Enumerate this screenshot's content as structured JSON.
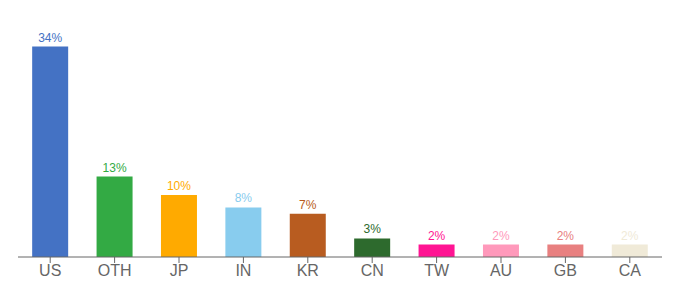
{
  "chart_data": {
    "type": "bar",
    "categories": [
      "US",
      "OTH",
      "JP",
      "IN",
      "KR",
      "CN",
      "TW",
      "AU",
      "GB",
      "CA"
    ],
    "values": [
      34,
      13,
      10,
      8,
      7,
      3,
      2,
      2,
      2,
      2
    ],
    "value_labels": [
      "34%",
      "13%",
      "10%",
      "8%",
      "7%",
      "3%",
      "2%",
      "2%",
      "2%",
      "2%"
    ],
    "data_labels": true,
    "colors": [
      "#4472c4",
      "#33aa44",
      "#ffaa00",
      "#88ccee",
      "#b85c20",
      "#2d6a2d",
      "#ff1493",
      "#ff99bb",
      "#e88080",
      "#f0ead8"
    ],
    "ylim": [
      0,
      37
    ],
    "tick_labels": "x",
    "grid": false
  }
}
